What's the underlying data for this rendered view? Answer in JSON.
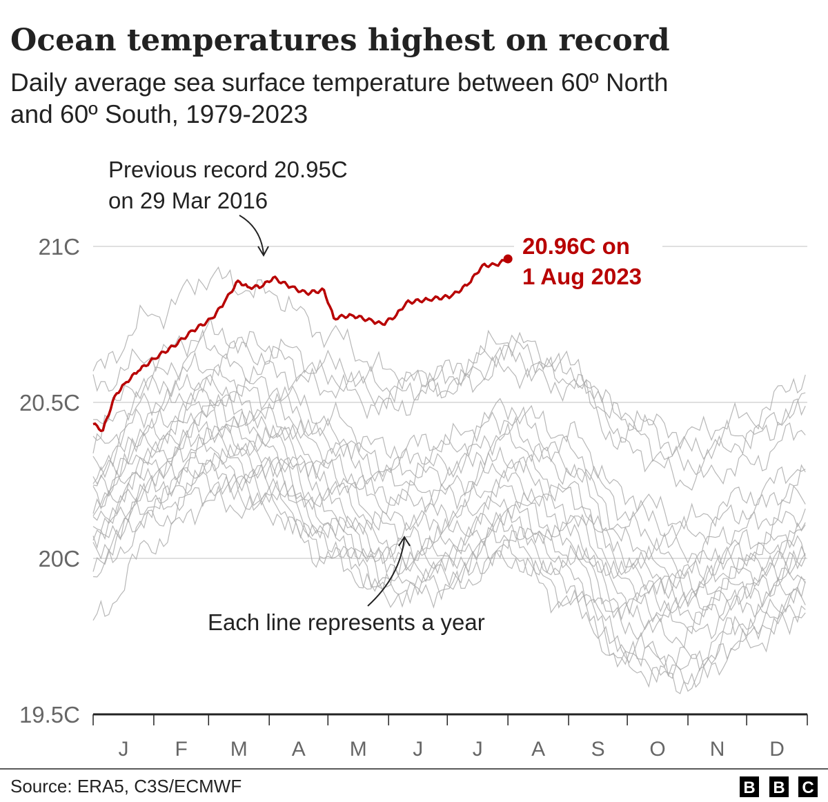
{
  "chart_data": {
    "type": "line",
    "title": "Ocean temperatures highest on record",
    "subtitle_line1": "Daily average sea surface temperature between 60º North",
    "subtitle_line2": "and 60º South, 1979-2023",
    "xlabel": "",
    "ylabel": "",
    "ylim": [
      19.5,
      21
    ],
    "y_ticks": [
      "21C",
      "20.5C",
      "20C",
      "19.5C"
    ],
    "y_tick_values": [
      21,
      20.5,
      20,
      19.5
    ],
    "x_ticks": [
      "J",
      "F",
      "M",
      "A",
      "M",
      "J",
      "J",
      "A",
      "S",
      "O",
      "N",
      "D"
    ],
    "grid": true,
    "colors": {
      "highlight": "#b80000",
      "other_years": "#aaaaaa",
      "grid": "#cccccc"
    },
    "highlight_series": {
      "name": "2023",
      "points": [
        [
          "01-01",
          20.43
        ],
        [
          "01-06",
          20.41
        ],
        [
          "01-12",
          20.52
        ],
        [
          "01-17",
          20.56
        ],
        [
          "01-24",
          20.6
        ],
        [
          "02-01",
          20.64
        ],
        [
          "02-11",
          20.68
        ],
        [
          "02-21",
          20.73
        ],
        [
          "03-03",
          20.77
        ],
        [
          "03-09",
          20.82
        ],
        [
          "03-16",
          20.89
        ],
        [
          "03-21",
          20.87
        ],
        [
          "03-28",
          20.87
        ],
        [
          "04-03",
          20.9
        ],
        [
          "04-12",
          20.87
        ],
        [
          "04-20",
          20.85
        ],
        [
          "04-29",
          20.86
        ],
        [
          "05-04",
          20.77
        ],
        [
          "05-13",
          20.78
        ],
        [
          "05-24",
          20.76
        ],
        [
          "05-29",
          20.75
        ],
        [
          "06-05",
          20.78
        ],
        [
          "06-10",
          20.82
        ],
        [
          "06-21",
          20.83
        ],
        [
          "07-03",
          20.84
        ],
        [
          "07-12",
          20.88
        ],
        [
          "07-19",
          20.94
        ],
        [
          "07-26",
          20.94
        ],
        [
          "08-01",
          20.96
        ]
      ]
    },
    "other_years_monthly": {
      "dates": [
        "01-01",
        "02-01",
        "03-01",
        "04-01",
        "05-01",
        "06-01",
        "07-01",
        "08-01",
        "09-01",
        "10-01",
        "11-01",
        "12-01",
        "12-31"
      ],
      "series": [
        [
          20.6,
          20.78,
          20.9,
          20.85,
          20.72,
          20.6,
          20.55,
          20.6,
          20.55,
          20.45,
          20.4,
          20.45,
          20.58
        ],
        [
          20.55,
          20.65,
          20.72,
          20.68,
          20.62,
          20.55,
          20.6,
          20.7,
          20.62,
          20.45,
          20.35,
          20.4,
          20.5
        ],
        [
          20.45,
          20.58,
          20.68,
          20.65,
          20.58,
          20.52,
          20.58,
          20.68,
          20.6,
          20.4,
          20.3,
          20.38,
          20.48
        ],
        [
          20.4,
          20.55,
          20.62,
          20.6,
          20.55,
          20.48,
          20.55,
          20.65,
          20.58,
          20.35,
          20.25,
          20.3,
          20.42
        ],
        [
          20.35,
          20.5,
          20.58,
          20.55,
          20.45,
          20.35,
          20.38,
          20.48,
          20.4,
          20.2,
          20.12,
          20.2,
          20.3
        ],
        [
          20.3,
          20.48,
          20.55,
          20.52,
          20.4,
          20.3,
          20.35,
          20.45,
          20.35,
          20.15,
          20.08,
          20.15,
          20.25
        ],
        [
          20.28,
          20.42,
          20.52,
          20.48,
          20.38,
          20.28,
          20.3,
          20.4,
          20.3,
          20.1,
          20.02,
          20.1,
          20.2
        ],
        [
          20.25,
          20.4,
          20.5,
          20.45,
          20.35,
          20.25,
          20.28,
          20.38,
          20.28,
          20.05,
          19.98,
          20.05,
          20.15
        ],
        [
          20.22,
          20.38,
          20.48,
          20.42,
          20.3,
          20.2,
          20.22,
          20.32,
          20.22,
          20.0,
          19.95,
          20.02,
          20.1
        ],
        [
          20.2,
          20.35,
          20.45,
          20.4,
          20.28,
          20.18,
          20.2,
          20.3,
          20.2,
          19.98,
          19.92,
          20.0,
          20.08
        ],
        [
          20.18,
          20.32,
          20.42,
          20.38,
          20.25,
          20.12,
          20.15,
          20.25,
          20.15,
          19.95,
          19.9,
          19.98,
          20.05
        ],
        [
          20.15,
          20.3,
          20.4,
          20.35,
          20.22,
          20.1,
          20.12,
          20.22,
          20.12,
          19.92,
          19.88,
          19.95,
          20.02
        ],
        [
          20.12,
          20.28,
          20.38,
          20.32,
          20.18,
          20.05,
          20.08,
          20.18,
          20.08,
          19.88,
          19.85,
          19.92,
          20.0
        ],
        [
          20.1,
          20.25,
          20.35,
          20.3,
          20.15,
          20.02,
          20.05,
          20.15,
          20.05,
          19.85,
          19.82,
          19.9,
          19.98
        ],
        [
          20.08,
          20.22,
          20.32,
          20.28,
          20.12,
          20.0,
          20.02,
          20.12,
          20.02,
          19.82,
          19.8,
          19.88,
          19.95
        ],
        [
          20.05,
          20.2,
          20.3,
          20.25,
          20.1,
          19.98,
          20.0,
          20.1,
          20.0,
          19.78,
          19.75,
          19.85,
          19.92
        ],
        [
          20.02,
          20.18,
          20.28,
          20.22,
          20.08,
          19.95,
          19.98,
          20.08,
          19.95,
          19.72,
          19.68,
          19.8,
          19.9
        ],
        [
          20.0,
          20.15,
          20.25,
          20.2,
          20.05,
          19.92,
          19.95,
          20.05,
          19.92,
          19.68,
          19.62,
          19.75,
          19.88
        ],
        [
          19.95,
          20.12,
          20.22,
          20.18,
          20.02,
          19.9,
          19.92,
          20.02,
          19.88,
          19.65,
          19.6,
          19.72,
          19.85
        ],
        [
          19.8,
          20.05,
          20.18,
          20.15,
          20.0,
          19.88,
          19.9,
          20.0,
          19.85,
          19.7,
          19.65,
          19.78,
          19.82
        ]
      ]
    },
    "annotations": {
      "previous_record_line1": "Previous record 20.95C",
      "previous_record_line2": "on 29 Mar 2016",
      "current_record_line1": "20.96C on",
      "current_record_line2": "1 Aug 2023",
      "each_line": "Each line represents a year"
    }
  },
  "footer": {
    "source": "Source: ERA5, C3S/ECMWF",
    "logo_letters": [
      "B",
      "B",
      "C"
    ]
  }
}
